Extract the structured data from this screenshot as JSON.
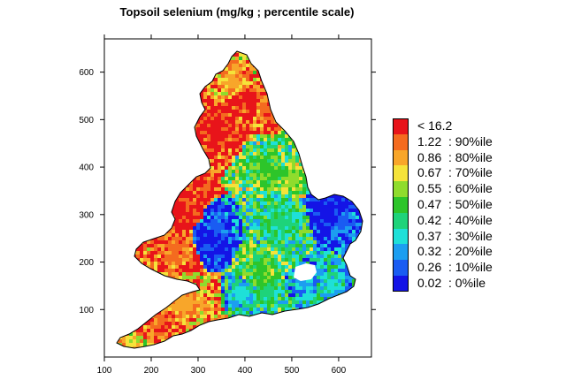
{
  "title": "Topsoil  selenium (mg/kg ; percentile scale)",
  "chart_data": {
    "type": "heatmap",
    "title": "Topsoil  selenium (mg/kg ; percentile scale)",
    "xlim": [
      100,
      670
    ],
    "ylim": [
      0,
      670
    ],
    "x_ticks": [
      "100",
      "200",
      "300",
      "400",
      "500",
      "600"
    ],
    "y_ticks": [
      "100",
      "200",
      "300",
      "400",
      "500",
      "600"
    ],
    "legend_placement": "right",
    "legend": [
      {
        "label": "< 16.2",
        "color": "#e8141a"
      },
      {
        "label": "1.22  : 90%ile",
        "color": "#f46b1f"
      },
      {
        "label": "0.86  : 80%ile",
        "color": "#f8a62a"
      },
      {
        "label": "0.67  : 70%ile",
        "color": "#f5e33a"
      },
      {
        "label": "0.55  : 60%ile",
        "color": "#8fdc2d"
      },
      {
        "label": "0.47  : 50%ile",
        "color": "#2dc52a"
      },
      {
        "label": "0.42  : 40%ile",
        "color": "#1ed37a"
      },
      {
        "label": "0.37  : 30%ile",
        "color": "#1ee0d8"
      },
      {
        "label": "0.32  : 20%ile",
        "color": "#1c9ef0"
      },
      {
        "label": "0.26  : 10%ile",
        "color": "#1a5cf2"
      },
      {
        "label": "0.02  : 0%ile",
        "color": "#1414e6"
      }
    ]
  }
}
